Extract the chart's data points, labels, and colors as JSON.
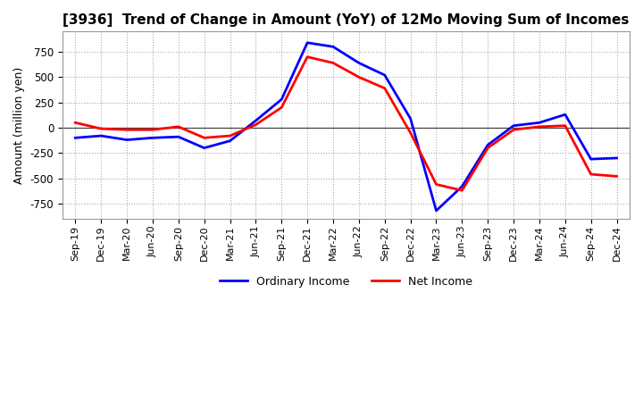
{
  "title": "[3936]  Trend of Change in Amount (YoY) of 12Mo Moving Sum of Incomes",
  "ylabel": "Amount (million yen)",
  "ylim": [
    -900,
    950
  ],
  "yticks": [
    -750,
    -500,
    -250,
    0,
    250,
    500,
    750
  ],
  "background_color": "#ffffff",
  "grid_color": "#aaaaaa",
  "x_labels": [
    "Sep-19",
    "Dec-19",
    "Mar-20",
    "Jun-20",
    "Sep-20",
    "Dec-20",
    "Mar-21",
    "Jun-21",
    "Sep-21",
    "Dec-21",
    "Mar-22",
    "Jun-22",
    "Sep-22",
    "Dec-22",
    "Mar-23",
    "Jun-23",
    "Sep-23",
    "Dec-23",
    "Mar-24",
    "Jun-24",
    "Sep-24",
    "Dec-24"
  ],
  "ordinary_income": [
    -100,
    -80,
    -120,
    -100,
    -90,
    -200,
    -130,
    70,
    280,
    840,
    800,
    640,
    520,
    90,
    -820,
    -580,
    -170,
    20,
    50,
    130,
    -310,
    -300
  ],
  "net_income": [
    50,
    -10,
    -20,
    -20,
    10,
    -100,
    -80,
    30,
    200,
    700,
    640,
    500,
    390,
    -50,
    -560,
    -620,
    -200,
    -20,
    10,
    20,
    -460,
    -480
  ],
  "ordinary_color": "#0000ff",
  "net_color": "#ff0000",
  "line_width": 2.0
}
